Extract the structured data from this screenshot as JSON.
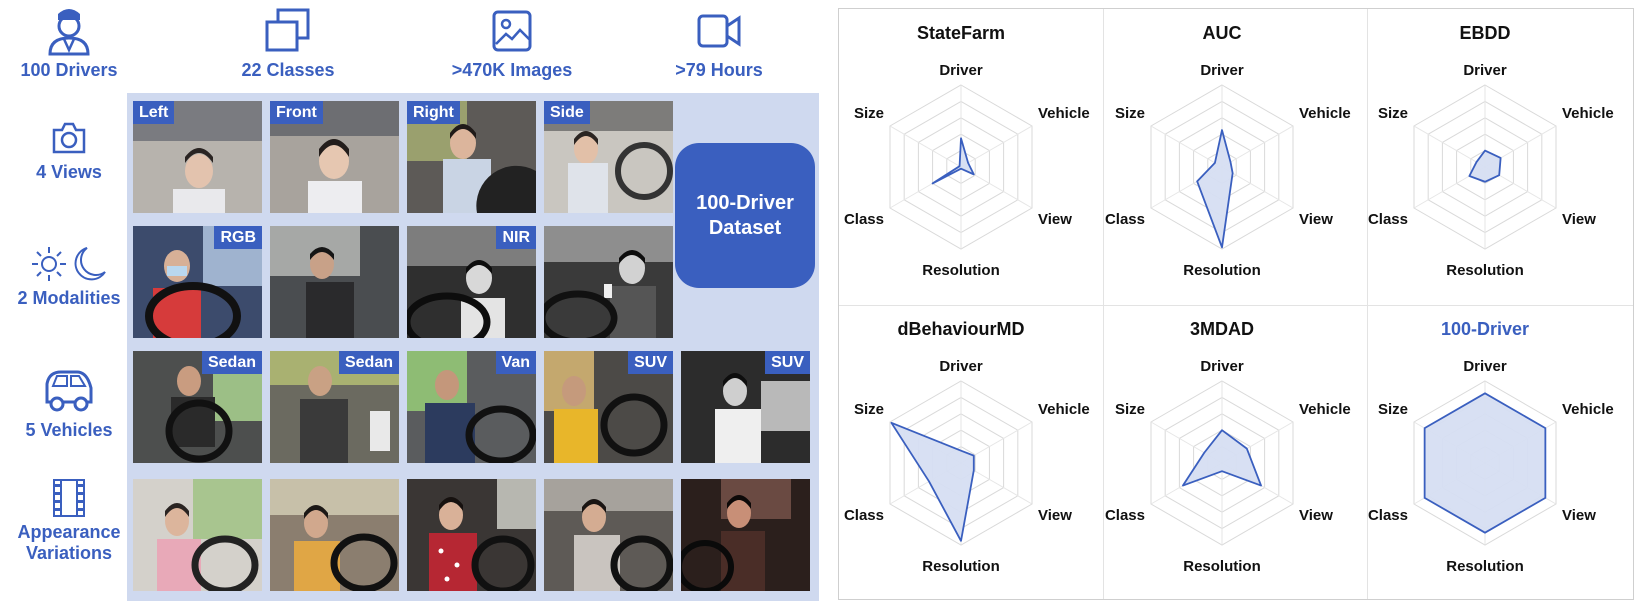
{
  "stats": [
    {
      "icon": "driver-icon",
      "label": "100 Drivers"
    },
    {
      "icon": "classes-icon",
      "label": "22 Classes"
    },
    {
      "icon": "image-icon",
      "label": ">470K Images"
    },
    {
      "icon": "video-icon",
      "label": ">79 Hours"
    }
  ],
  "sides": [
    {
      "icon": "camera-icon",
      "label": "4 Views"
    },
    {
      "icon": "sun-moon-icon",
      "label": "2 Modalities"
    },
    {
      "icon": "car-icon",
      "label": "5 Vehicles"
    },
    {
      "icon": "film-icon",
      "label": "Appearance\nVariations"
    }
  ],
  "view_tags": [
    "Left",
    "Front",
    "Right",
    "Side"
  ],
  "modality_tags": [
    "RGB",
    "NIR"
  ],
  "vehicle_tags": [
    "Sedan",
    "Sedan",
    "Van",
    "SUV",
    "SUV"
  ],
  "dataset_box": {
    "line1": "100-Driver",
    "line2": "Dataset"
  },
  "colors": {
    "accent": "#3a5fbf",
    "panel": "#cfd9ef",
    "radar_fill": "#d6def2"
  },
  "chart_data": [
    {
      "type": "radar",
      "title": "StateFarm",
      "axes": [
        "Driver",
        "Vehicle",
        "View",
        "Resolution",
        "Class",
        "Size"
      ],
      "values": [
        0.35,
        0.1,
        0.18,
        0.02,
        0.4,
        0.02
      ]
    },
    {
      "type": "radar",
      "title": "AUC",
      "axes": [
        "Driver",
        "Vehicle",
        "View",
        "Resolution",
        "Class",
        "Size"
      ],
      "values": [
        0.45,
        0.12,
        0.15,
        0.98,
        0.35,
        0.1
      ]
    },
    {
      "type": "radar",
      "title": "EBDD",
      "axes": [
        "Driver",
        "Vehicle",
        "View",
        "Resolution",
        "Class",
        "Size"
      ],
      "values": [
        0.2,
        0.22,
        0.2,
        0.18,
        0.22,
        0.12
      ]
    },
    {
      "type": "radar",
      "title": "dBehaviourMD",
      "axes": [
        "Driver",
        "Vehicle",
        "View",
        "Resolution",
        "Class",
        "Size"
      ],
      "values": [
        0.15,
        0.18,
        0.18,
        0.95,
        0.45,
        0.98
      ]
    },
    {
      "type": "radar",
      "title": "3MDAD",
      "axes": [
        "Driver",
        "Vehicle",
        "View",
        "Resolution",
        "Class",
        "Size"
      ],
      "values": [
        0.4,
        0.35,
        0.55,
        0.1,
        0.55,
        0.25
      ]
    },
    {
      "type": "radar",
      "title": "100-Driver",
      "highlight": true,
      "axes": [
        "Driver",
        "Vehicle",
        "View",
        "Resolution",
        "Class",
        "Size"
      ],
      "values": [
        0.85,
        0.85,
        0.85,
        0.85,
        0.85,
        0.85
      ]
    }
  ]
}
